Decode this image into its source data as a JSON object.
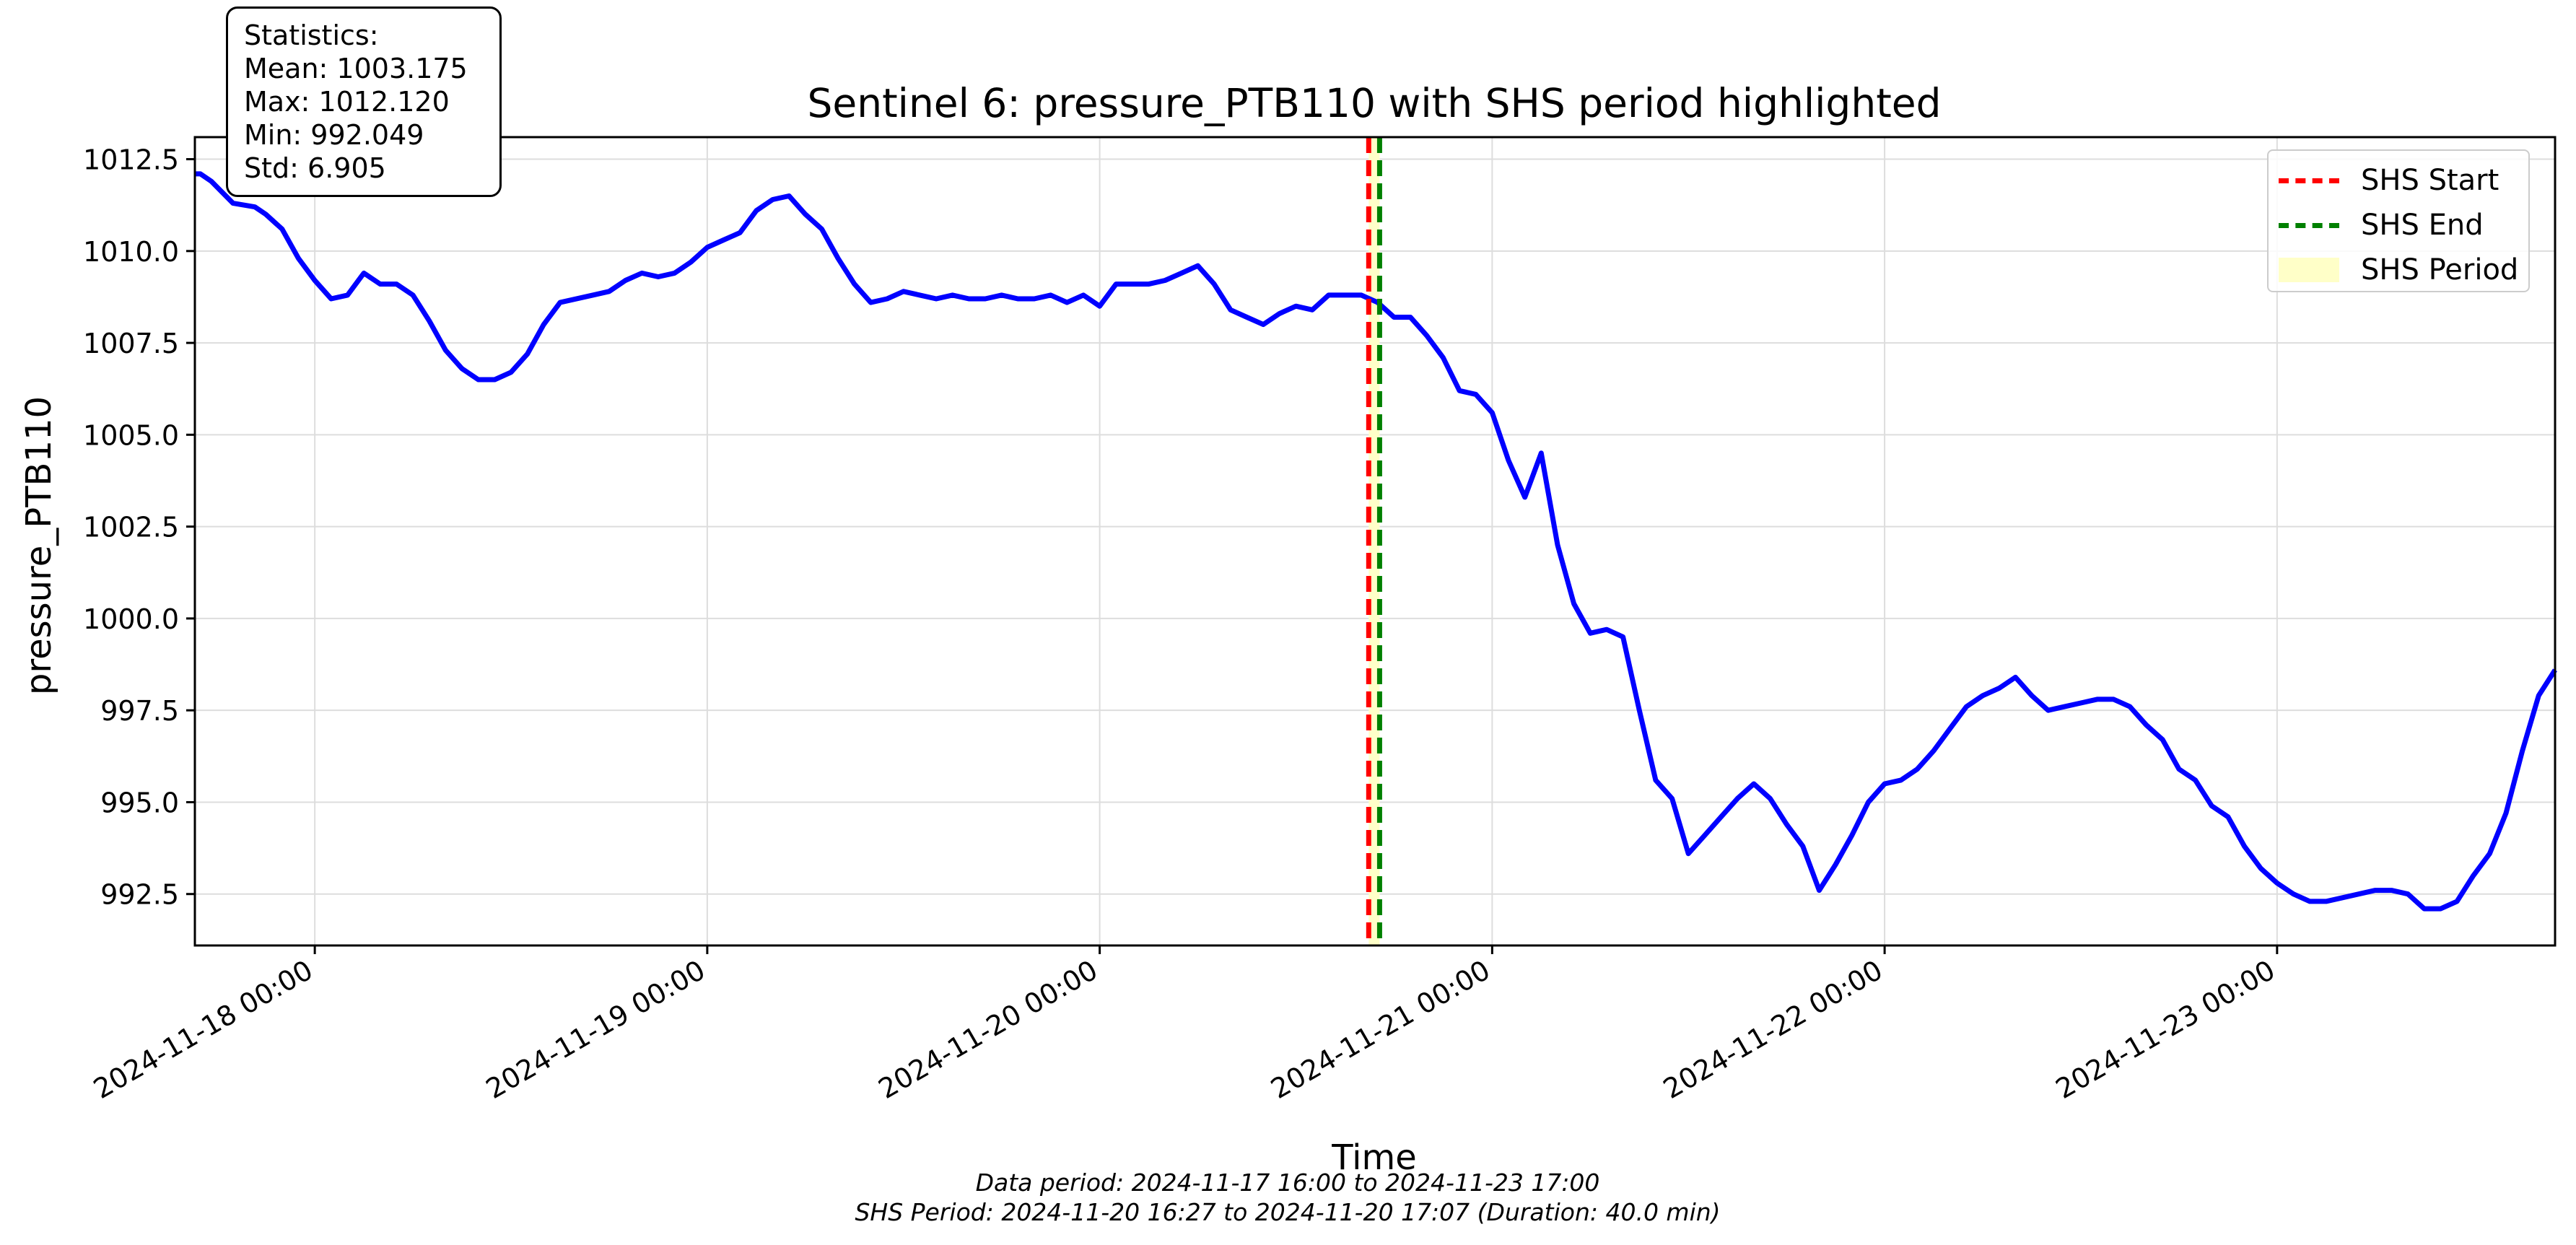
{
  "chart_data": {
    "type": "line",
    "title": "Sentinel 6: pressure_PTB110 with SHS period highlighted",
    "xlabel": "Time",
    "ylabel": "pressure_PTB110",
    "xlim": [
      "2024-11-17 16:40",
      "2024-11-23 17:00"
    ],
    "ylim": [
      991.1,
      1013.1
    ],
    "x_ticks": [
      "2024-11-18 00:00",
      "2024-11-19 00:00",
      "2024-11-20 00:00",
      "2024-11-21 00:00",
      "2024-11-22 00:00",
      "2024-11-23 00:00"
    ],
    "y_ticks": [
      "992.5",
      "995.0",
      "997.5",
      "1000.0",
      "1002.5",
      "1005.0",
      "1007.5",
      "1010.0",
      "1012.5"
    ],
    "grid": true,
    "legend_position": "top-right",
    "series": [
      {
        "color": "#0000ff",
        "points": [
          [
            "2024-11-17 16:40",
            1012.1
          ],
          [
            "2024-11-17 17:00",
            1012.1
          ],
          [
            "2024-11-17 17:40",
            1011.9
          ],
          [
            "2024-11-17 19:00",
            1011.3
          ],
          [
            "2024-11-17 20:20",
            1011.2
          ],
          [
            "2024-11-17 21:00",
            1011.0
          ],
          [
            "2024-11-17 22:00",
            1010.6
          ],
          [
            "2024-11-17 23:00",
            1009.8
          ],
          [
            "2024-11-18 00:00",
            1009.2
          ],
          [
            "2024-11-18 01:00",
            1008.7
          ],
          [
            "2024-11-18 02:00",
            1008.8
          ],
          [
            "2024-11-18 03:00",
            1009.4
          ],
          [
            "2024-11-18 04:00",
            1009.1
          ],
          [
            "2024-11-18 05:00",
            1009.1
          ],
          [
            "2024-11-18 06:00",
            1008.8
          ],
          [
            "2024-11-18 07:00",
            1008.1
          ],
          [
            "2024-11-18 08:00",
            1007.3
          ],
          [
            "2024-11-18 09:00",
            1006.8
          ],
          [
            "2024-11-18 10:00",
            1006.5
          ],
          [
            "2024-11-18 11:00",
            1006.5
          ],
          [
            "2024-11-18 12:00",
            1006.7
          ],
          [
            "2024-11-18 13:00",
            1007.2
          ],
          [
            "2024-11-18 14:00",
            1008.0
          ],
          [
            "2024-11-18 15:00",
            1008.6
          ],
          [
            "2024-11-18 17:00",
            1008.8
          ],
          [
            "2024-11-18 18:00",
            1008.9
          ],
          [
            "2024-11-18 19:00",
            1009.2
          ],
          [
            "2024-11-18 20:00",
            1009.4
          ],
          [
            "2024-11-18 21:00",
            1009.3
          ],
          [
            "2024-11-18 22:00",
            1009.4
          ],
          [
            "2024-11-18 23:00",
            1009.7
          ],
          [
            "2024-11-19 00:00",
            1010.1
          ],
          [
            "2024-11-19 01:00",
            1010.3
          ],
          [
            "2024-11-19 02:00",
            1010.5
          ],
          [
            "2024-11-19 03:00",
            1011.1
          ],
          [
            "2024-11-19 04:00",
            1011.4
          ],
          [
            "2024-11-19 05:00",
            1011.5
          ],
          [
            "2024-11-19 06:00",
            1011.0
          ],
          [
            "2024-11-19 07:00",
            1010.6
          ],
          [
            "2024-11-19 08:00",
            1009.8
          ],
          [
            "2024-11-19 09:00",
            1009.1
          ],
          [
            "2024-11-19 10:00",
            1008.6
          ],
          [
            "2024-11-19 11:00",
            1008.7
          ],
          [
            "2024-11-19 12:00",
            1008.9
          ],
          [
            "2024-11-19 13:00",
            1008.8
          ],
          [
            "2024-11-19 14:00",
            1008.7
          ],
          [
            "2024-11-19 15:00",
            1008.8
          ],
          [
            "2024-11-19 16:00",
            1008.7
          ],
          [
            "2024-11-19 17:00",
            1008.7
          ],
          [
            "2024-11-19 18:00",
            1008.8
          ],
          [
            "2024-11-19 19:00",
            1008.7
          ],
          [
            "2024-11-19 20:00",
            1008.7
          ],
          [
            "2024-11-19 21:00",
            1008.8
          ],
          [
            "2024-11-19 22:00",
            1008.6
          ],
          [
            "2024-11-19 23:00",
            1008.8
          ],
          [
            "2024-11-20 00:00",
            1008.5
          ],
          [
            "2024-11-20 01:00",
            1009.1
          ],
          [
            "2024-11-20 02:00",
            1009.1
          ],
          [
            "2024-11-20 03:00",
            1009.1
          ],
          [
            "2024-11-20 04:00",
            1009.2
          ],
          [
            "2024-11-20 05:00",
            1009.4
          ],
          [
            "2024-11-20 06:00",
            1009.6
          ],
          [
            "2024-11-20 07:00",
            1009.1
          ],
          [
            "2024-11-20 08:00",
            1008.4
          ],
          [
            "2024-11-20 09:00",
            1008.2
          ],
          [
            "2024-11-20 10:00",
            1008.0
          ],
          [
            "2024-11-20 11:00",
            1008.3
          ],
          [
            "2024-11-20 12:00",
            1008.5
          ],
          [
            "2024-11-20 13:00",
            1008.4
          ],
          [
            "2024-11-20 14:00",
            1008.8
          ],
          [
            "2024-11-20 15:00",
            1008.8
          ],
          [
            "2024-11-20 16:00",
            1008.8
          ],
          [
            "2024-11-20 17:00",
            1008.6
          ],
          [
            "2024-11-20 18:00",
            1008.2
          ],
          [
            "2024-11-20 19:00",
            1008.2
          ],
          [
            "2024-11-20 20:00",
            1007.7
          ],
          [
            "2024-11-20 21:00",
            1007.1
          ],
          [
            "2024-11-20 22:00",
            1006.2
          ],
          [
            "2024-11-20 23:00",
            1006.1
          ],
          [
            "2024-11-21 00:00",
            1005.6
          ],
          [
            "2024-11-21 01:00",
            1004.3
          ],
          [
            "2024-11-21 02:00",
            1003.3
          ],
          [
            "2024-11-21 03:00",
            1004.5
          ],
          [
            "2024-11-21 04:00",
            1002.0
          ],
          [
            "2024-11-21 05:00",
            1000.4
          ],
          [
            "2024-11-21 06:00",
            999.6
          ],
          [
            "2024-11-21 07:00",
            999.7
          ],
          [
            "2024-11-21 08:00",
            999.5
          ],
          [
            "2024-11-21 09:00",
            997.5
          ],
          [
            "2024-11-21 10:00",
            995.6
          ],
          [
            "2024-11-21 11:00",
            995.1
          ],
          [
            "2024-11-21 12:00",
            993.6
          ],
          [
            "2024-11-21 13:00",
            994.1
          ],
          [
            "2024-11-21 14:00",
            994.6
          ],
          [
            "2024-11-21 15:00",
            995.1
          ],
          [
            "2024-11-21 16:00",
            995.5
          ],
          [
            "2024-11-21 17:00",
            995.1
          ],
          [
            "2024-11-21 18:00",
            994.4
          ],
          [
            "2024-11-21 19:00",
            993.8
          ],
          [
            "2024-11-21 20:00",
            992.6
          ],
          [
            "2024-11-21 21:00",
            993.3
          ],
          [
            "2024-11-21 22:00",
            994.1
          ],
          [
            "2024-11-21 23:00",
            995.0
          ],
          [
            "2024-11-22 00:00",
            995.5
          ],
          [
            "2024-11-22 01:00",
            995.6
          ],
          [
            "2024-11-22 02:00",
            995.9
          ],
          [
            "2024-11-22 03:00",
            996.4
          ],
          [
            "2024-11-22 04:00",
            997.0
          ],
          [
            "2024-11-22 05:00",
            997.6
          ],
          [
            "2024-11-22 06:00",
            997.9
          ],
          [
            "2024-11-22 07:00",
            998.1
          ],
          [
            "2024-11-22 08:00",
            998.4
          ],
          [
            "2024-11-22 09:00",
            997.9
          ],
          [
            "2024-11-22 10:00",
            997.5
          ],
          [
            "2024-11-22 11:00",
            997.6
          ],
          [
            "2024-11-22 12:00",
            997.7
          ],
          [
            "2024-11-22 13:00",
            997.8
          ],
          [
            "2024-11-22 14:00",
            997.8
          ],
          [
            "2024-11-22 15:00",
            997.6
          ],
          [
            "2024-11-22 16:00",
            997.1
          ],
          [
            "2024-11-22 17:00",
            996.7
          ],
          [
            "2024-11-22 18:00",
            995.9
          ],
          [
            "2024-11-22 19:00",
            995.6
          ],
          [
            "2024-11-22 20:00",
            994.9
          ],
          [
            "2024-11-22 21:00",
            994.6
          ],
          [
            "2024-11-22 22:00",
            993.8
          ],
          [
            "2024-11-22 23:00",
            993.2
          ],
          [
            "2024-11-23 00:00",
            992.8
          ],
          [
            "2024-11-23 01:00",
            992.5
          ],
          [
            "2024-11-23 02:00",
            992.3
          ],
          [
            "2024-11-23 03:00",
            992.3
          ],
          [
            "2024-11-23 04:00",
            992.4
          ],
          [
            "2024-11-23 05:00",
            992.5
          ],
          [
            "2024-11-23 06:00",
            992.6
          ],
          [
            "2024-11-23 07:00",
            992.6
          ],
          [
            "2024-11-23 08:00",
            992.5
          ],
          [
            "2024-11-23 09:00",
            992.1
          ],
          [
            "2024-11-23 10:00",
            992.1
          ],
          [
            "2024-11-23 11:00",
            992.3
          ],
          [
            "2024-11-23 12:00",
            993.0
          ],
          [
            "2024-11-23 13:00",
            993.6
          ],
          [
            "2024-11-23 14:00",
            994.7
          ],
          [
            "2024-11-23 15:00",
            996.4
          ],
          [
            "2024-11-23 16:00",
            997.9
          ],
          [
            "2024-11-23 17:00",
            998.6
          ]
        ]
      }
    ],
    "shs_start": "2024-11-20 16:27",
    "shs_end": "2024-11-20 17:07",
    "legend": [
      {
        "label": "SHS Start",
        "color": "#ff0000",
        "style": "dashed"
      },
      {
        "label": "SHS End",
        "color": "#008000",
        "style": "dashed"
      },
      {
        "label": "SHS Period",
        "color": "#ffffc8",
        "style": "fill"
      }
    ],
    "statistics": {
      "heading": "Statistics:",
      "mean": "Mean: 1003.175",
      "max": "Max: 1012.120",
      "min": "Min: 992.049",
      "std": "Std: 6.905"
    },
    "footer": [
      "Data period: 2024-11-17 16:00 to 2024-11-23 17:00",
      "SHS Period: 2024-11-20 16:27 to 2024-11-20 17:07 (Duration: 40.0 min)"
    ]
  }
}
